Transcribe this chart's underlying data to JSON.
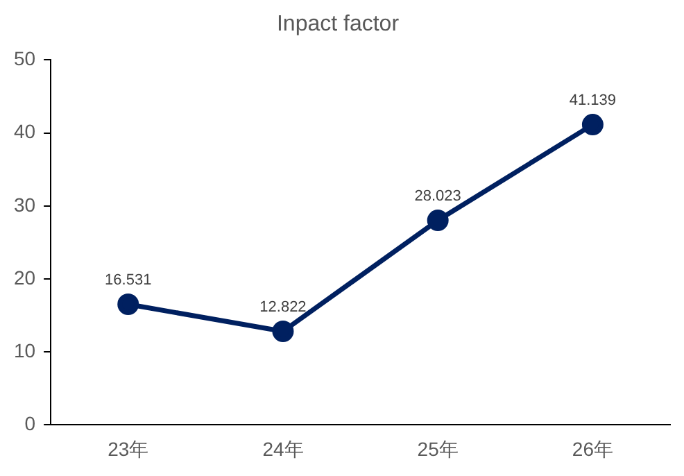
{
  "chart_data": {
    "type": "line",
    "title": "Inpact factor",
    "categories": [
      "23年",
      "24年",
      "25年",
      "26年"
    ],
    "series": [
      {
        "color": "#002060",
        "values": [
          16.531,
          12.822,
          28.023,
          41.139
        ]
      }
    ],
    "ylim": [
      0,
      50
    ],
    "yticks": [
      0,
      10,
      20,
      30,
      40,
      50
    ],
    "grid": false,
    "legend": false,
    "marker": "circle",
    "line_style": "solid",
    "data_labels": true
  }
}
